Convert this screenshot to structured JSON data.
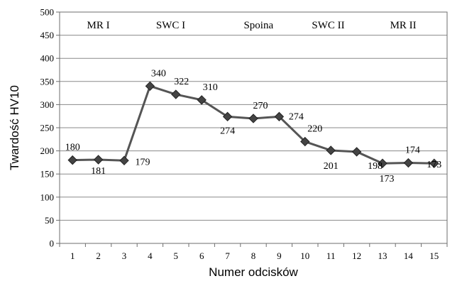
{
  "chart_data": {
    "type": "line",
    "xlabel": "Numer odcisków",
    "ylabel": "Twardość HV10",
    "ylim": [
      0,
      500
    ],
    "yticks": [
      0,
      50,
      100,
      150,
      200,
      250,
      300,
      350,
      400,
      450,
      500
    ],
    "grid": true,
    "x": [
      1,
      2,
      3,
      4,
      5,
      6,
      7,
      8,
      9,
      10,
      11,
      12,
      13,
      14,
      15
    ],
    "series": [
      {
        "values": [
          180,
          181,
          179,
          340,
          322,
          310,
          274,
          270,
          274,
          220,
          201,
          198,
          173,
          174,
          173
        ],
        "color": "#555555",
        "marker": "diamond"
      }
    ],
    "data_labels": [
      "180",
      "181",
      "179",
      "340",
      "322",
      "310",
      "274",
      "270",
      "274",
      "220",
      "201",
      "198",
      "173",
      "174",
      "173"
    ],
    "zones": [
      {
        "label": "MR I",
        "x_center": 2
      },
      {
        "label": "SWC I",
        "x_center": 4.8
      },
      {
        "label": "Spoina",
        "x_center": 8.2
      },
      {
        "label": "SWC II",
        "x_center": 10.9
      },
      {
        "label": "MR II",
        "x_center": 13.8
      }
    ]
  }
}
